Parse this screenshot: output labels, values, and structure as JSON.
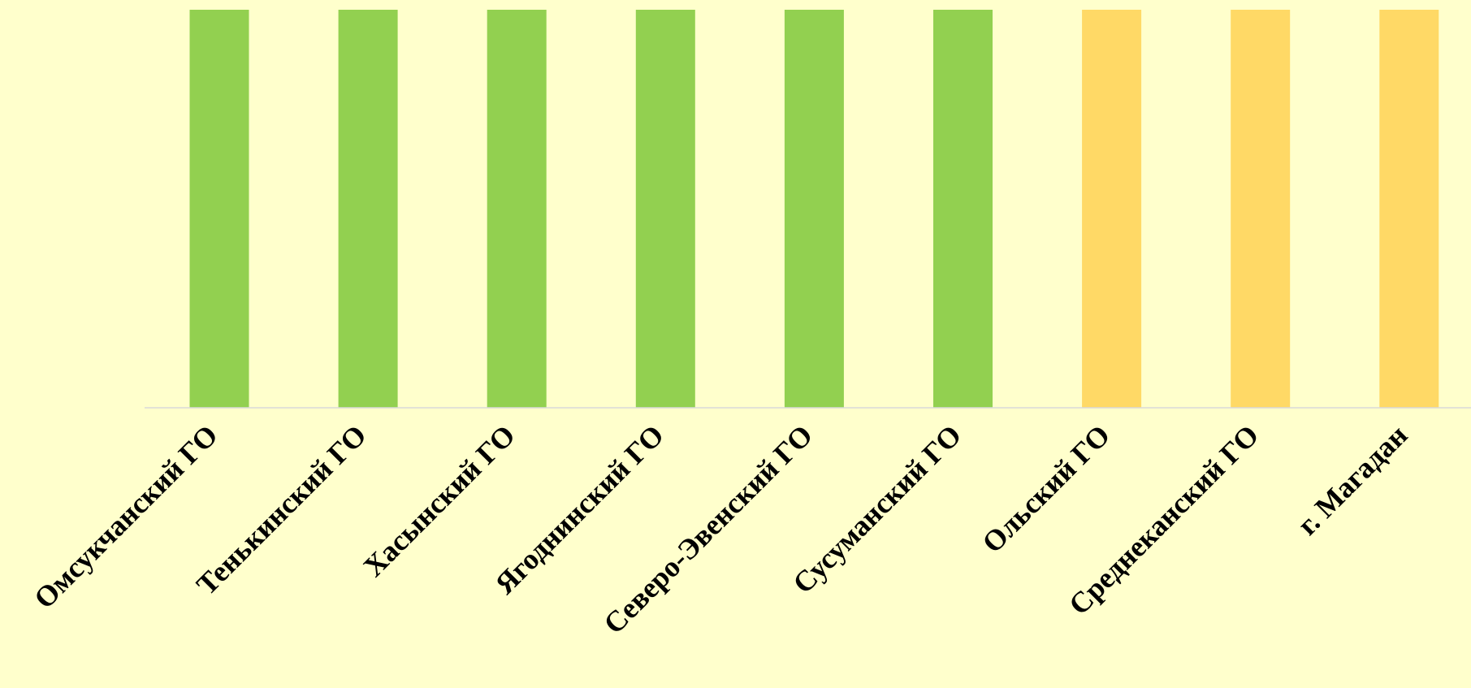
{
  "chart_data": {
    "type": "bar",
    "categories": [
      "Омсукчанский ГО",
      "Тенькинский ГО",
      "Хасынский ГО",
      "Ягоднинский ГО",
      "Северо-Эвенский ГО",
      "Сусуманский ГО",
      "Ольский ГО",
      "Среднеканский ГО",
      "г. Магадан"
    ],
    "values": [
      1,
      1,
      1,
      1,
      1,
      1,
      1,
      1,
      1
    ],
    "bar_colors": [
      "#92d050",
      "#92d050",
      "#92d050",
      "#92d050",
      "#92d050",
      "#92d050",
      "#ffd966",
      "#ffd966",
      "#ffd966"
    ],
    "ylim": [
      0,
      1
    ],
    "grid": false,
    "background": "#ffffcc",
    "axis_color": "#d9d9d9"
  }
}
